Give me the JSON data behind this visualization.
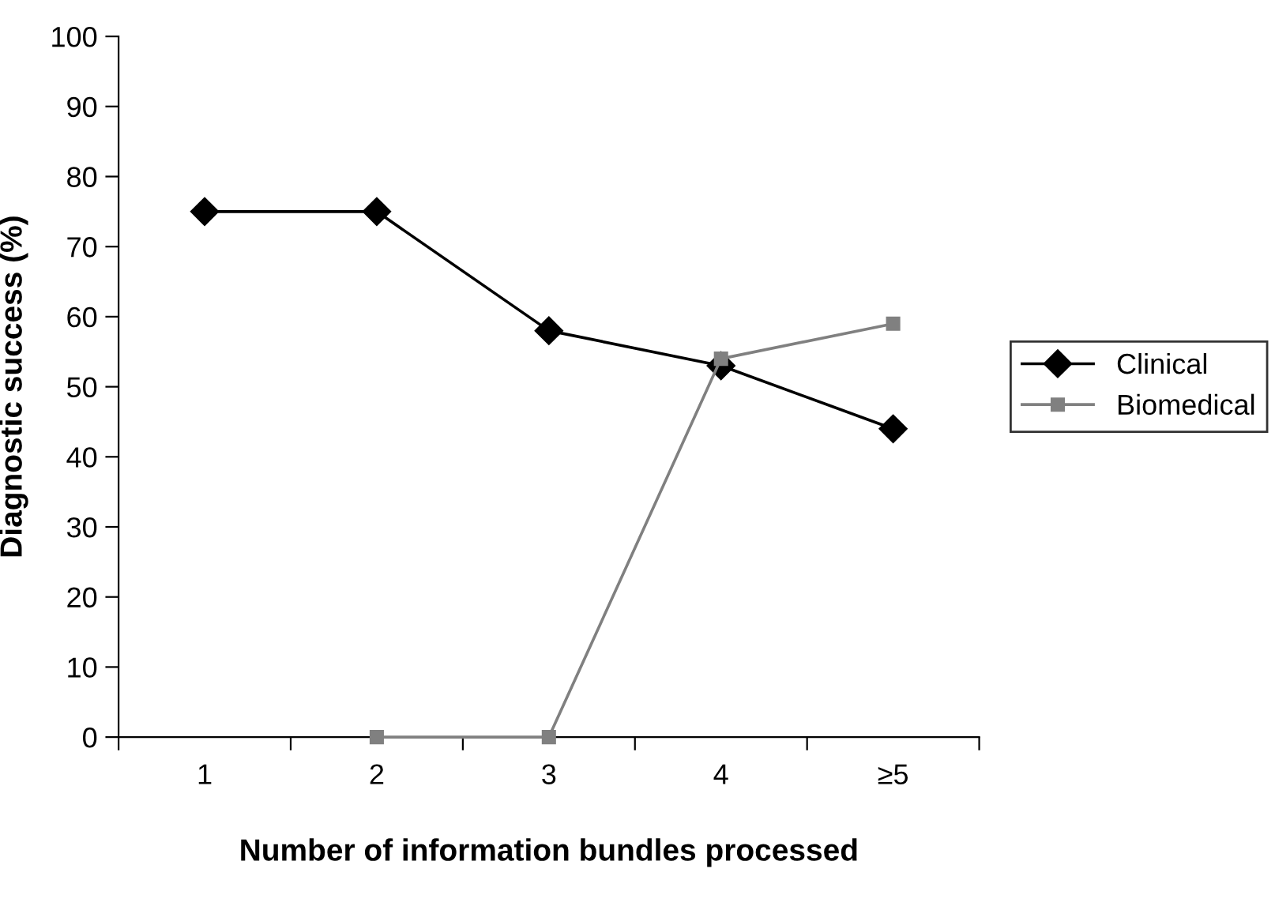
{
  "chart_data": {
    "type": "line",
    "xlabel": "Number of information bundles processed",
    "ylabel": "Diagnostic success (%)",
    "categories": [
      "1",
      "2",
      "3",
      "4",
      "≥5"
    ],
    "series": [
      {
        "name": "Clinical",
        "color": "#000000",
        "marker": "diamond",
        "values": [
          75,
          75,
          58,
          53,
          44
        ]
      },
      {
        "name": "Biomedical",
        "color": "#808080",
        "marker": "square",
        "values": [
          null,
          0,
          0,
          54,
          59
        ]
      }
    ],
    "ylim": [
      0,
      100
    ],
    "yticks": [
      0,
      10,
      20,
      30,
      40,
      50,
      60,
      70,
      80,
      90,
      100
    ],
    "grid": false,
    "legend": "right",
    "line_style": "solid"
  }
}
